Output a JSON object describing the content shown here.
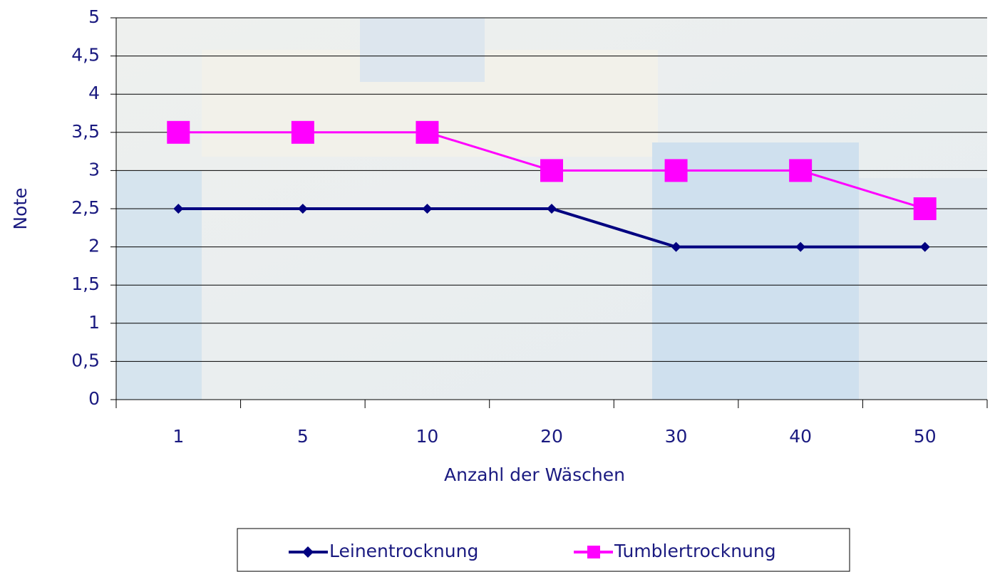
{
  "chart_data": {
    "type": "line",
    "categories": [
      "1",
      "5",
      "10",
      "20",
      "30",
      "40",
      "50"
    ],
    "x_label": "Anzahl der Wäschen",
    "y_label": "Note",
    "ylim": [
      0,
      5
    ],
    "yticks": [
      0,
      {
        "value": 0.5,
        "label": "0,5"
      },
      1,
      {
        "value": 1.5,
        "label": "1,5"
      },
      2,
      {
        "value": 2.5,
        "label": "2,5"
      },
      3,
      {
        "value": 3.5,
        "label": "3,5"
      },
      4,
      {
        "value": 4.5,
        "label": "4,5"
      },
      5
    ],
    "grid": true,
    "legend": "bottom",
    "series": [
      {
        "name": "Leinentrocknung",
        "color": "#000080",
        "marker": "diamond",
        "values": [
          2.5,
          2.5,
          2.5,
          2.5,
          2,
          2,
          2
        ]
      },
      {
        "name": "Tumblertrocknung",
        "color": "#ff00ff",
        "marker": "square",
        "values": [
          3.5,
          3.5,
          3.5,
          3,
          3,
          3,
          2.5
        ]
      }
    ]
  }
}
